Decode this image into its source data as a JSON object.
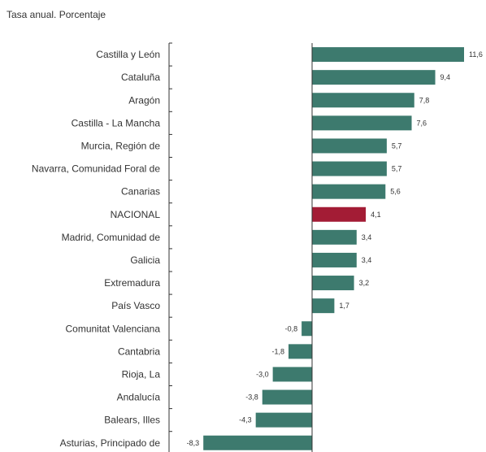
{
  "subtitle": "Tasa anual. Porcentaje",
  "chart_data": {
    "type": "bar",
    "orientation": "horizontal",
    "title": "",
    "subtitle": "Tasa anual. Porcentaje",
    "categories": [
      "Castilla y León",
      "Cataluña",
      "Aragón",
      "Castilla - La Mancha",
      "Murcia, Región de",
      "Navarra, Comunidad Foral de",
      "Canarias",
      "NACIONAL",
      "Madrid, Comunidad de",
      "Galicia",
      "Extremadura",
      "País Vasco",
      "Comunitat Valenciana",
      "Cantabria",
      "Rioja, La",
      "Andalucía",
      "Balears, Illes",
      "Asturias, Principado de"
    ],
    "values": [
      11.6,
      9.4,
      7.8,
      7.6,
      5.7,
      5.7,
      5.6,
      4.1,
      3.4,
      3.4,
      3.2,
      1.7,
      -0.8,
      -1.8,
      -3.0,
      -3.8,
      -4.3,
      -8.3
    ],
    "value_labels": [
      "11,6",
      "9,4",
      "7,8",
      "7,6",
      "5,7",
      "5,7",
      "5,6",
      "4,1",
      "3,4",
      "3,4",
      "3,2",
      "1,7",
      "-0,8",
      "-1,8",
      "-3,0",
      "-3,8",
      "-4,3",
      "-8,3"
    ],
    "highlight_category": "NACIONAL",
    "colors": {
      "default": "#3d7a6e",
      "highlight": "#a31c35",
      "axis": "#333333"
    },
    "xlim": [
      -8.3,
      11.6
    ],
    "grid": false,
    "legend": "none"
  }
}
